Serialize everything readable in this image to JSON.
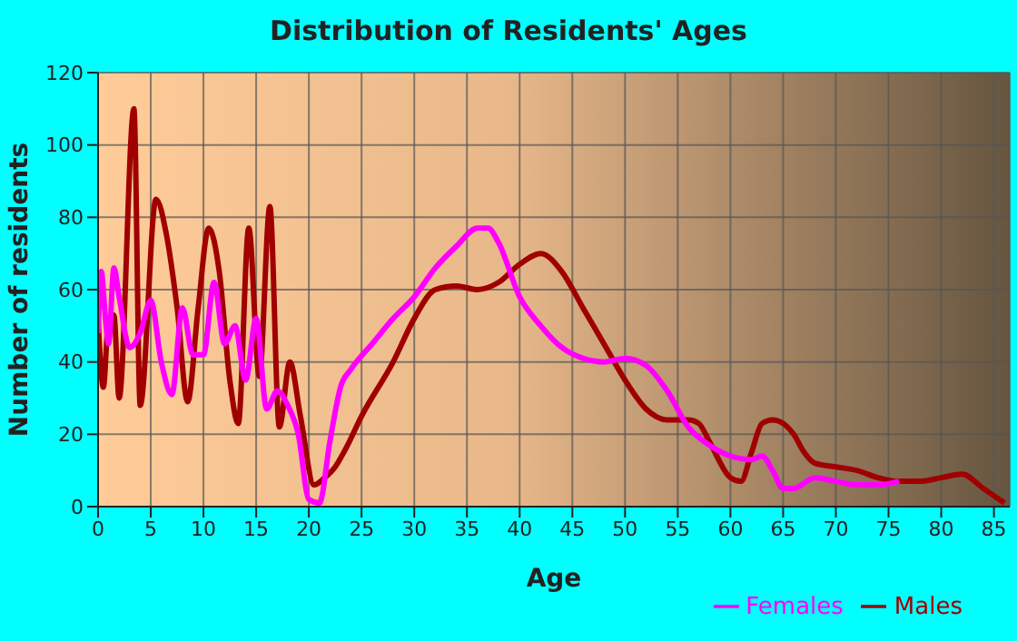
{
  "chart_data": {
    "type": "line",
    "title": "Distribution of Residents' Ages",
    "xlabel": "Age",
    "ylabel": "Number of residents",
    "xlim": [
      0,
      86.5
    ],
    "xticks": [
      0,
      5,
      10,
      15,
      20,
      25,
      30,
      35,
      40,
      45,
      50,
      55,
      60,
      65,
      70,
      75,
      80,
      85
    ],
    "ylim": [
      0,
      120
    ],
    "yticks": [
      0,
      20,
      40,
      60,
      80,
      100,
      120
    ],
    "grid": true,
    "legend": "bottom",
    "marker": "none",
    "line_style": "solid",
    "series": [
      {
        "name": "Males",
        "color": "#a00000",
        "x": [
          0,
          0.5,
          1,
          1.5,
          2,
          3.4,
          4,
          5.5,
          6.5,
          7.5,
          8.5,
          9.5,
          10.5,
          11.5,
          12.5,
          13.3,
          14.3,
          15.3,
          16.3,
          17.2,
          18.2,
          19.2,
          20.5,
          21.5,
          22.5,
          23.5,
          25,
          28,
          30,
          32,
          34,
          36,
          38,
          40,
          42,
          44,
          46,
          48,
          50,
          52,
          54,
          56,
          57,
          58,
          60,
          61,
          62,
          63,
          64,
          65,
          66,
          67,
          68,
          70,
          72,
          74,
          76,
          78,
          80,
          82,
          84,
          86
        ],
        "values": [
          52,
          33,
          52,
          53,
          30,
          110,
          28,
          85,
          75,
          55,
          29,
          55,
          77,
          65,
          35,
          23,
          77,
          36,
          83,
          22,
          40,
          25,
          6,
          8,
          11,
          16,
          25,
          40,
          52,
          60,
          61,
          60,
          62,
          67,
          70,
          65,
          55,
          45,
          35,
          27,
          24,
          24,
          23,
          18,
          8,
          7,
          15,
          23,
          24,
          23,
          20,
          15,
          12,
          11,
          10,
          8,
          7,
          7,
          8,
          9,
          5,
          1
        ]
      },
      {
        "name": "Females",
        "color": "#ff00ff",
        "x": [
          0,
          0.3,
          0.7,
          1,
          1.5,
          2,
          3,
          4,
          5,
          6,
          7,
          8,
          9,
          10,
          11,
          12,
          13,
          14,
          15,
          16,
          17,
          18,
          19,
          20,
          21,
          22,
          23,
          24,
          26,
          28,
          30,
          32,
          34,
          36,
          37,
          38,
          40,
          42,
          44,
          46,
          48,
          50,
          52,
          54,
          56,
          58,
          60,
          62,
          63,
          64,
          65,
          66,
          68,
          70,
          72,
          74,
          76
        ],
        "values": [
          48,
          65,
          52,
          45,
          66,
          58,
          44,
          48,
          57,
          40,
          31,
          55,
          42,
          42,
          62,
          45,
          50,
          35,
          52,
          27,
          32,
          28,
          20,
          2,
          1,
          18,
          33,
          38,
          45,
          52,
          58,
          66,
          72,
          77,
          77,
          73,
          58,
          50,
          44,
          41,
          40,
          41,
          39,
          32,
          22,
          17,
          14,
          13,
          14,
          10,
          5,
          5,
          8,
          7,
          6,
          6,
          7
        ]
      }
    ]
  }
}
